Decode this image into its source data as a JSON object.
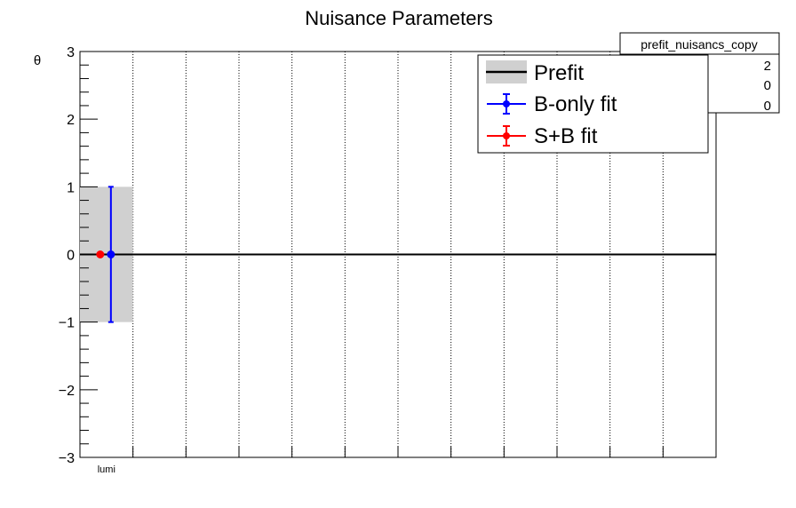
{
  "chart_data": {
    "type": "scatter",
    "title": "Nuisance Parameters",
    "ylabel": "θ",
    "xlabel": "",
    "ylim": [
      -3,
      3
    ],
    "yticks": [
      -3,
      -2,
      -1,
      0,
      1,
      2,
      3
    ],
    "ytick_labels": [
      "−3",
      "−2",
      "−1",
      "0",
      "1",
      "2",
      "3"
    ],
    "n_bins": 12,
    "categories": [
      "lumi"
    ],
    "grid": "vertical-dotted",
    "prefit": {
      "name": "Prefit",
      "center": 0,
      "band": [
        -1,
        1
      ]
    },
    "series": [
      {
        "name": "B-only fit",
        "color": "#0000ff",
        "x": [
          "lumi"
        ],
        "values": [
          0
        ],
        "err_low": [
          -1
        ],
        "err_high": [
          1
        ]
      },
      {
        "name": "S+B fit",
        "color": "#ff0000",
        "x": [
          "lumi"
        ],
        "values": [
          0
        ]
      }
    ],
    "legend_position": "top-right",
    "stats_box": {
      "title": "prefit_nuisancs_copy",
      "values": [
        "2",
        "0",
        "0"
      ]
    }
  }
}
